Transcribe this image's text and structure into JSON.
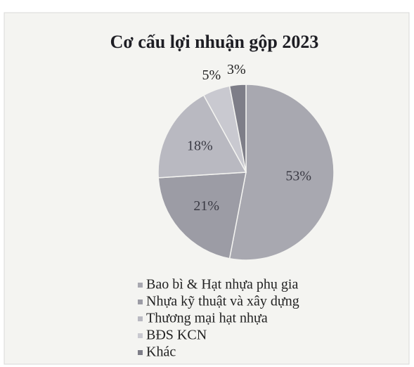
{
  "chart_data": {
    "type": "pie",
    "title": "Cơ cấu lợi nhuận gộp 2023",
    "categories": [
      "Bao bì & Hạt nhựa phụ gia",
      "Nhựa kỹ thuật và xây dựng",
      "Thương mại hạt nhựa",
      "BĐS KCN",
      "Khác"
    ],
    "values": [
      53,
      21,
      18,
      5,
      3
    ],
    "value_labels": [
      "53%",
      "21%",
      "18%",
      "5%",
      "3%"
    ],
    "colors": [
      "#a8a8b0",
      "#9c9ca5",
      "#b9b9c1",
      "#c9c9d0",
      "#7e7e88"
    ],
    "legend": "bottom"
  }
}
